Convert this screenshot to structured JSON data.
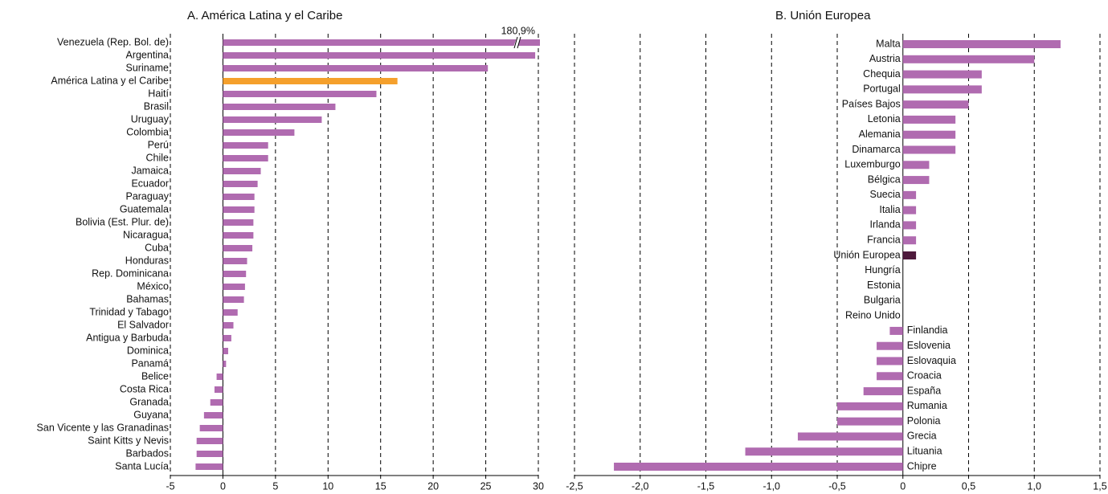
{
  "chart_data": [
    {
      "type": "bar",
      "orientation": "horizontal",
      "title": "A. América Latina y el Caribe",
      "categories": [
        "Venezuela (Rep. Bol. de)",
        "Argentina",
        "Suriname",
        "América Latina y el Caribe",
        "Haití",
        "Brasil",
        "Uruguay",
        "Colombia",
        "Perú",
        "Chile",
        "Jamaica",
        "Ecuador",
        "Paraguay",
        "Guatemala",
        "Bolivia (Est. Plur. de)",
        "Nicaragua",
        "Cuba",
        "Honduras",
        "Rep. Dominicana",
        "México",
        "Bahamas",
        "Trinidad y Tabago",
        "El Salvador",
        "Antigua y Barbuda",
        "Dominica",
        "Panamá",
        "Belice",
        "Costa Rica",
        "Granada",
        "Guyana",
        "San Vicente y las Granadinas",
        "Saint Kitts y Nevis",
        "Barbados",
        "Santa Lucía"
      ],
      "values": [
        180.9,
        29.7,
        25.2,
        16.6,
        14.6,
        10.7,
        9.4,
        6.8,
        4.3,
        4.3,
        3.6,
        3.3,
        3.0,
        3.0,
        2.9,
        2.9,
        2.8,
        2.3,
        2.2,
        2.1,
        2.0,
        1.4,
        1.0,
        0.8,
        0.5,
        0.3,
        -0.6,
        -0.8,
        -1.2,
        -1.8,
        -2.2,
        -2.5,
        -2.5,
        -2.6
      ],
      "value_labels": [
        "180,9%",
        null,
        null,
        null,
        null,
        null,
        null,
        null,
        null,
        null,
        null,
        null,
        null,
        null,
        null,
        null,
        null,
        null,
        null,
        null,
        null,
        null,
        null,
        null,
        null,
        null,
        null,
        null,
        null,
        null,
        null,
        null,
        null,
        null
      ],
      "colors": [
        "#b06bb0",
        "#b06bb0",
        "#b06bb0",
        "#f5a02c",
        "#b06bb0",
        "#b06bb0",
        "#b06bb0",
        "#b06bb0",
        "#b06bb0",
        "#b06bb0",
        "#b06bb0",
        "#b06bb0",
        "#b06bb0",
        "#b06bb0",
        "#b06bb0",
        "#b06bb0",
        "#b06bb0",
        "#b06bb0",
        "#b06bb0",
        "#b06bb0",
        "#b06bb0",
        "#b06bb0",
        "#b06bb0",
        "#b06bb0",
        "#b06bb0",
        "#b06bb0",
        "#b06bb0",
        "#b06bb0",
        "#b06bb0",
        "#b06bb0",
        "#b06bb0",
        "#b06bb0",
        "#b06bb0",
        "#b06bb0"
      ],
      "xlim": [
        -5,
        30
      ],
      "xticks": [
        -5,
        0,
        5,
        10,
        15,
        20,
        25,
        30
      ],
      "grid": true
    },
    {
      "type": "bar",
      "orientation": "horizontal",
      "title": "B. Unión Europea",
      "categories": [
        "Malta",
        "Austria",
        "Chequia",
        "Portugal",
        "Países Bajos",
        "Letonia",
        "Alemania",
        "Dinamarca",
        "Luxemburgo",
        "Bélgica",
        "Suecia",
        "Italia",
        "Irlanda",
        "Francia",
        "Unión Europea",
        "Hungría",
        "Estonia",
        "Bulgaria",
        "Reino Unido",
        "Finlandia",
        "Eslovenia",
        "Eslovaquia",
        "Croacia",
        "España",
        "Rumania",
        "Polonia",
        "Grecia",
        "Lituania",
        "Chipre"
      ],
      "values": [
        1.2,
        1.0,
        0.6,
        0.6,
        0.5,
        0.4,
        0.4,
        0.4,
        0.2,
        0.2,
        0.1,
        0.1,
        0.1,
        0.1,
        0.1,
        0,
        0,
        0,
        0,
        -0.1,
        -0.2,
        -0.2,
        -0.2,
        -0.3,
        -0.5,
        -0.5,
        -0.8,
        -1.2,
        -2.2
      ],
      "colors": [
        "#b06bb0",
        "#b06bb0",
        "#b06bb0",
        "#b06bb0",
        "#b06bb0",
        "#b06bb0",
        "#b06bb0",
        "#b06bb0",
        "#b06bb0",
        "#b06bb0",
        "#b06bb0",
        "#b06bb0",
        "#b06bb0",
        "#b06bb0",
        "#4e1a3c",
        "#b06bb0",
        "#b06bb0",
        "#b06bb0",
        "#b06bb0",
        "#b06bb0",
        "#b06bb0",
        "#b06bb0",
        "#b06bb0",
        "#b06bb0",
        "#b06bb0",
        "#b06bb0",
        "#b06bb0",
        "#b06bb0",
        "#b06bb0"
      ],
      "xlim": [
        -2.5,
        1.5
      ],
      "xticks": [
        {
          "value": -2.5,
          "label": "-2,5"
        },
        {
          "value": -2.0,
          "label": "-2,0"
        },
        {
          "value": -1.5,
          "label": "-1,5"
        },
        {
          "value": -1.0,
          "label": "-1,0"
        },
        {
          "value": -0.5,
          "label": "-0,5"
        },
        0,
        {
          "value": 0.5,
          "label": "0,5"
        },
        {
          "value": 1.0,
          "label": "1,0"
        },
        {
          "value": 1.5,
          "label": "1,5"
        }
      ],
      "grid": true
    }
  ]
}
